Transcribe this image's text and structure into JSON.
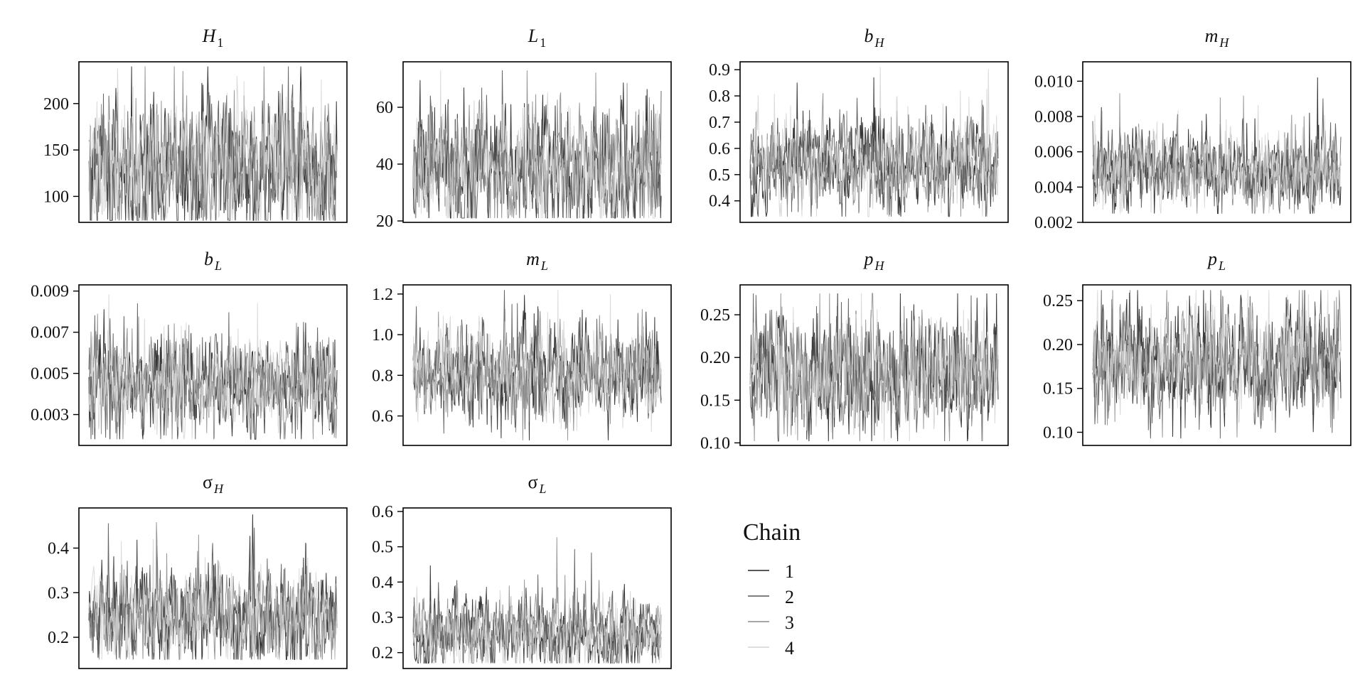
{
  "chart_data": [
    {
      "type": "line",
      "title": "H",
      "subscript": "1",
      "yticks": [
        100,
        150,
        200
      ],
      "ylim": [
        72,
        245
      ],
      "base": 130,
      "spread": 35,
      "upper": 240,
      "lower": 74
    },
    {
      "type": "line",
      "title": "L",
      "subscript": "1",
      "yticks": [
        20,
        40,
        60
      ],
      "ylim": [
        19.5,
        76
      ],
      "base": 38,
      "spread": 10,
      "upper": 73,
      "lower": 21
    },
    {
      "type": "line",
      "title": "b",
      "subscript": "H",
      "yticks": [
        0.4,
        0.5,
        0.6,
        0.7,
        0.8,
        0.9
      ],
      "ylim": [
        0.318,
        0.93
      ],
      "base": 0.54,
      "spread": 0.08,
      "upper": 0.91,
      "lower": 0.34
    },
    {
      "type": "line",
      "title": "m",
      "subscript": "H",
      "yticks": [
        0.002,
        0.004,
        0.006,
        0.008,
        0.01
      ],
      "ylim": [
        0.002,
        0.0111
      ],
      "base": 0.005,
      "spread": 0.0011,
      "upper": 0.0108,
      "lower": 0.0025
    },
    {
      "type": "line",
      "title": "b",
      "subscript": "L",
      "yticks": [
        0.003,
        0.005,
        0.007,
        0.009
      ],
      "ylim": [
        0.0015,
        0.0093
      ],
      "base": 0.0045,
      "spread": 0.0011,
      "upper": 0.0089,
      "lower": 0.0018
    },
    {
      "type": "line",
      "title": "m",
      "subscript": "L",
      "yticks": [
        0.6,
        0.8,
        1.0,
        1.2
      ],
      "ylim": [
        0.455,
        1.245
      ],
      "base": 0.81,
      "spread": 0.11,
      "upper": 1.22,
      "lower": 0.48
    },
    {
      "type": "line",
      "title": "p",
      "subscript": "H",
      "yticks": [
        0.1,
        0.15,
        0.2,
        0.25
      ],
      "ylim": [
        0.097,
        0.285
      ],
      "base": 0.18,
      "spread": 0.032,
      "upper": 0.275,
      "lower": 0.102
    },
    {
      "type": "line",
      "title": "p",
      "subscript": "L",
      "yticks": [
        0.1,
        0.15,
        0.2,
        0.25
      ],
      "ylim": [
        0.085,
        0.268
      ],
      "base": 0.18,
      "spread": 0.03,
      "upper": 0.262,
      "lower": 0.093
    },
    {
      "type": "line",
      "title": "σ",
      "subscript": "H",
      "yticks": [
        0.2,
        0.3,
        0.4
      ],
      "ylim": [
        0.13,
        0.49
      ],
      "base": 0.25,
      "spread": 0.05,
      "upper": 0.48,
      "lower": 0.15
    },
    {
      "type": "line",
      "title": "σ",
      "subscript": "L",
      "yticks": [
        0.2,
        0.3,
        0.4,
        0.5,
        0.6
      ],
      "ylim": [
        0.155,
        0.61
      ],
      "base": 0.26,
      "spread": 0.05,
      "upper": 0.58,
      "lower": 0.17
    }
  ],
  "legend": {
    "title": "Chain",
    "entries": [
      {
        "label": "1",
        "color": "#202020"
      },
      {
        "label": "2",
        "color": "#555555"
      },
      {
        "label": "3",
        "color": "#8c8c8c"
      },
      {
        "label": "4",
        "color": "#d3d3d3"
      }
    ]
  }
}
